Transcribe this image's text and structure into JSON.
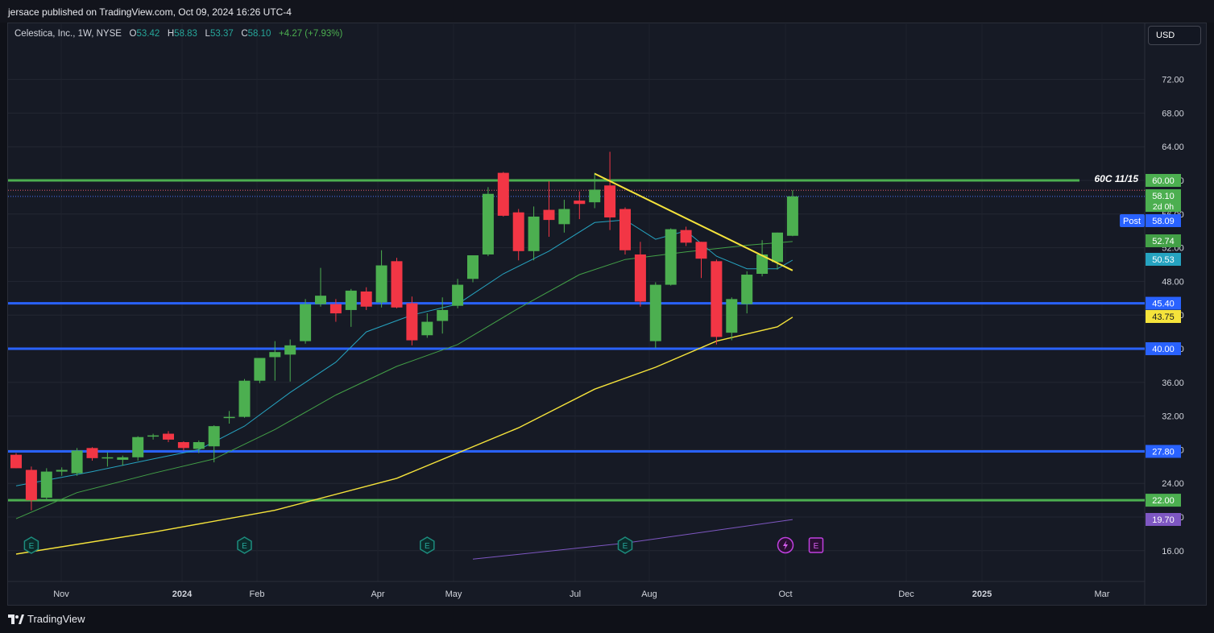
{
  "header": {
    "published": "jersace published on TradingView.com, Oct 09, 2024 16:26 UTC-4"
  },
  "legend": {
    "symbol": "Celestica, Inc., 1W, NYSE",
    "o_label": "O",
    "o_value": "53.42",
    "h_label": "H",
    "h_value": "58.83",
    "l_label": "L",
    "l_value": "53.37",
    "c_label": "C",
    "c_value": "58.10",
    "change": "+4.27 (+7.93%)"
  },
  "currency_button": "USD",
  "brand": "TradingView",
  "colors": {
    "up": "#4caf50",
    "down": "#f23645",
    "ema_fast": "#26a3c0",
    "ema_mid": "#43a047",
    "ema_slow": "#f5e33b",
    "long_ma": "#7e57c2",
    "support": "#2962ff",
    "level_green": "#4caf50",
    "trendline": "#f5e33b"
  },
  "chart_data": {
    "type": "candlestick",
    "title": "Celestica, Inc., 1W, NYSE",
    "timeframe": "1W",
    "ylim": [
      15,
      75
    ],
    "y_ticks": [
      "72.00",
      "68.00",
      "64.00",
      "60.00",
      "56.00",
      "52.00",
      "48.00",
      "44.00",
      "40.00",
      "36.00",
      "32.00",
      "28.00",
      "24.00",
      "20.00",
      "16.00"
    ],
    "x_ticks": [
      "Nov",
      "2024",
      "Feb",
      "Apr",
      "May",
      "Jul",
      "Aug",
      "Oct",
      "Dec",
      "2025",
      "Mar"
    ],
    "grid": true,
    "candles": [
      {
        "date": "2023-10-16",
        "o": 27.4,
        "h": 27.6,
        "l": 25.8,
        "c": 25.8
      },
      {
        "date": "2023-10-23",
        "o": 25.6,
        "h": 26.0,
        "l": 20.8,
        "c": 22.0
      },
      {
        "date": "2023-10-30",
        "o": 22.3,
        "h": 25.8,
        "l": 21.9,
        "c": 25.4
      },
      {
        "date": "2023-11-06",
        "o": 25.4,
        "h": 25.9,
        "l": 24.9,
        "c": 25.6
      },
      {
        "date": "2023-11-13",
        "o": 25.2,
        "h": 28.2,
        "l": 24.9,
        "c": 27.9
      },
      {
        "date": "2023-11-20",
        "o": 28.2,
        "h": 28.3,
        "l": 26.7,
        "c": 27.0
      },
      {
        "date": "2023-11-27",
        "o": 27.0,
        "h": 27.7,
        "l": 26.0,
        "c": 27.1
      },
      {
        "date": "2023-12-04",
        "o": 26.8,
        "h": 27.3,
        "l": 26.1,
        "c": 27.1
      },
      {
        "date": "2023-12-11",
        "o": 27.1,
        "h": 29.6,
        "l": 26.7,
        "c": 29.5
      },
      {
        "date": "2023-12-18",
        "o": 29.6,
        "h": 29.9,
        "l": 29.2,
        "c": 29.7
      },
      {
        "date": "2023-12-25",
        "o": 29.9,
        "h": 30.2,
        "l": 28.9,
        "c": 29.2
      },
      {
        "date": "2024-01-01",
        "o": 28.9,
        "h": 29.0,
        "l": 27.9,
        "c": 28.2
      },
      {
        "date": "2024-01-08",
        "o": 28.1,
        "h": 29.1,
        "l": 27.6,
        "c": 28.9
      },
      {
        "date": "2024-01-15",
        "o": 28.4,
        "h": 30.9,
        "l": 26.5,
        "c": 30.8
      },
      {
        "date": "2024-01-22",
        "o": 31.8,
        "h": 32.6,
        "l": 31.1,
        "c": 31.9
      },
      {
        "date": "2024-01-29",
        "o": 31.9,
        "h": 36.4,
        "l": 31.8,
        "c": 36.2
      },
      {
        "date": "2024-02-05",
        "o": 36.2,
        "h": 38.9,
        "l": 35.9,
        "c": 38.9
      },
      {
        "date": "2024-02-12",
        "o": 39.0,
        "h": 40.9,
        "l": 36.2,
        "c": 39.6
      },
      {
        "date": "2024-02-19",
        "o": 39.3,
        "h": 41.1,
        "l": 36.1,
        "c": 40.4
      },
      {
        "date": "2024-02-26",
        "o": 40.9,
        "h": 45.9,
        "l": 40.6,
        "c": 45.3
      },
      {
        "date": "2024-03-04",
        "o": 45.3,
        "h": 49.6,
        "l": 45.0,
        "c": 46.3
      },
      {
        "date": "2024-03-11",
        "o": 45.3,
        "h": 45.9,
        "l": 43.2,
        "c": 44.2
      },
      {
        "date": "2024-03-18",
        "o": 44.6,
        "h": 47.1,
        "l": 42.6,
        "c": 46.9
      },
      {
        "date": "2024-03-25",
        "o": 46.8,
        "h": 47.3,
        "l": 44.6,
        "c": 45.0
      },
      {
        "date": "2024-04-01",
        "o": 45.5,
        "h": 51.7,
        "l": 44.9,
        "c": 49.9
      },
      {
        "date": "2024-04-08",
        "o": 50.4,
        "h": 50.8,
        "l": 44.8,
        "c": 44.9
      },
      {
        "date": "2024-04-15",
        "o": 45.4,
        "h": 46.2,
        "l": 40.4,
        "c": 41.0
      },
      {
        "date": "2024-04-22",
        "o": 41.6,
        "h": 44.2,
        "l": 41.3,
        "c": 43.2
      },
      {
        "date": "2024-04-29",
        "o": 43.3,
        "h": 46.1,
        "l": 41.8,
        "c": 44.6
      },
      {
        "date": "2024-05-06",
        "o": 45.1,
        "h": 48.3,
        "l": 44.8,
        "c": 47.6
      },
      {
        "date": "2024-05-13",
        "o": 48.3,
        "h": 50.7,
        "l": 47.9,
        "c": 51.1
      },
      {
        "date": "2024-05-20",
        "o": 51.2,
        "h": 59.2,
        "l": 51.0,
        "c": 58.4
      },
      {
        "date": "2024-05-27",
        "o": 60.9,
        "h": 61.0,
        "l": 55.7,
        "c": 55.8
      },
      {
        "date": "2024-06-03",
        "o": 56.2,
        "h": 56.6,
        "l": 50.5,
        "c": 51.6
      },
      {
        "date": "2024-06-10",
        "o": 51.6,
        "h": 56.9,
        "l": 50.5,
        "c": 55.7
      },
      {
        "date": "2024-06-17",
        "o": 56.5,
        "h": 59.9,
        "l": 53.3,
        "c": 55.3
      },
      {
        "date": "2024-06-24",
        "o": 54.8,
        "h": 57.7,
        "l": 53.8,
        "c": 56.6
      },
      {
        "date": "2024-07-01",
        "o": 57.6,
        "h": 58.7,
        "l": 55.4,
        "c": 57.2
      },
      {
        "date": "2024-07-08",
        "o": 57.4,
        "h": 60.9,
        "l": 56.7,
        "c": 58.9
      },
      {
        "date": "2024-07-15",
        "o": 59.4,
        "h": 63.4,
        "l": 54.1,
        "c": 55.6
      },
      {
        "date": "2024-07-22",
        "o": 56.6,
        "h": 56.8,
        "l": 51.2,
        "c": 51.7
      },
      {
        "date": "2024-07-29",
        "o": 51.2,
        "h": 52.7,
        "l": 45.0,
        "c": 45.6
      },
      {
        "date": "2024-08-05",
        "o": 40.9,
        "h": 47.9,
        "l": 40.1,
        "c": 47.6
      },
      {
        "date": "2024-08-12",
        "o": 47.6,
        "h": 54.3,
        "l": 47.5,
        "c": 54.2
      },
      {
        "date": "2024-08-19",
        "o": 54.1,
        "h": 54.5,
        "l": 52.2,
        "c": 52.6
      },
      {
        "date": "2024-08-26",
        "o": 52.7,
        "h": 52.7,
        "l": 48.4,
        "c": 50.7
      },
      {
        "date": "2024-09-02",
        "o": 50.4,
        "h": 50.6,
        "l": 40.5,
        "c": 41.4
      },
      {
        "date": "2024-09-09",
        "o": 41.9,
        "h": 46.1,
        "l": 41.0,
        "c": 45.9
      },
      {
        "date": "2024-09-16",
        "o": 45.3,
        "h": 49.2,
        "l": 44.2,
        "c": 48.8
      },
      {
        "date": "2024-09-23",
        "o": 48.9,
        "h": 52.9,
        "l": 48.6,
        "c": 51.2
      },
      {
        "date": "2024-09-30",
        "o": 50.3,
        "h": 53.8,
        "l": 49.4,
        "c": 53.8
      },
      {
        "date": "2024-10-07",
        "o": 53.42,
        "h": 58.83,
        "l": 53.37,
        "c": 58.1
      }
    ],
    "ema_fast": [
      {
        "date": "2023-10-16",
        "v": 23.7
      },
      {
        "date": "2023-11-20",
        "v": 25.4
      },
      {
        "date": "2023-12-18",
        "v": 26.9
      },
      {
        "date": "2024-01-08",
        "v": 28.0
      },
      {
        "date": "2024-01-29",
        "v": 30.8
      },
      {
        "date": "2024-02-19",
        "v": 34.8
      },
      {
        "date": "2024-03-11",
        "v": 38.4
      },
      {
        "date": "2024-03-25",
        "v": 42.0
      },
      {
        "date": "2024-04-15",
        "v": 44.0
      },
      {
        "date": "2024-05-06",
        "v": 45.3
      },
      {
        "date": "2024-05-27",
        "v": 48.9
      },
      {
        "date": "2024-06-17",
        "v": 51.6
      },
      {
        "date": "2024-07-08",
        "v": 55.0
      },
      {
        "date": "2024-07-22",
        "v": 55.3
      },
      {
        "date": "2024-08-05",
        "v": 53.0
      },
      {
        "date": "2024-08-19",
        "v": 54.0
      },
      {
        "date": "2024-09-02",
        "v": 51.0
      },
      {
        "date": "2024-09-16",
        "v": 49.5
      },
      {
        "date": "2024-09-30",
        "v": 49.5
      },
      {
        "date": "2024-10-07",
        "v": 50.53
      }
    ],
    "ema_mid": [
      {
        "date": "2023-10-16",
        "v": 19.8
      },
      {
        "date": "2023-11-13",
        "v": 22.9
      },
      {
        "date": "2023-12-18",
        "v": 25.2
      },
      {
        "date": "2024-01-15",
        "v": 26.9
      },
      {
        "date": "2024-02-12",
        "v": 30.4
      },
      {
        "date": "2024-03-11",
        "v": 34.5
      },
      {
        "date": "2024-04-08",
        "v": 37.9
      },
      {
        "date": "2024-05-06",
        "v": 40.5
      },
      {
        "date": "2024-06-03",
        "v": 44.8
      },
      {
        "date": "2024-07-01",
        "v": 48.8
      },
      {
        "date": "2024-07-22",
        "v": 50.6
      },
      {
        "date": "2024-08-19",
        "v": 51.5
      },
      {
        "date": "2024-09-16",
        "v": 52.3
      },
      {
        "date": "2024-10-07",
        "v": 52.74
      }
    ],
    "ema_slow": [
      {
        "date": "2023-10-16",
        "v": 15.6
      },
      {
        "date": "2023-12-18",
        "v": 18.2
      },
      {
        "date": "2024-02-12",
        "v": 20.8
      },
      {
        "date": "2024-04-08",
        "v": 24.6
      },
      {
        "date": "2024-06-03",
        "v": 30.6
      },
      {
        "date": "2024-07-08",
        "v": 35.2
      },
      {
        "date": "2024-08-05",
        "v": 37.8
      },
      {
        "date": "2024-09-02",
        "v": 40.9
      },
      {
        "date": "2024-09-30",
        "v": 42.6
      },
      {
        "date": "2024-10-07",
        "v": 43.75
      }
    ],
    "long_ma": [
      {
        "date": "2024-05-13",
        "v": 15.0
      },
      {
        "date": "2024-07-22",
        "v": 16.9
      },
      {
        "date": "2024-10-07",
        "v": 19.7
      }
    ],
    "horizontal_levels": [
      {
        "price": 60.0,
        "label": "60.00",
        "kind": "resistance-green"
      },
      {
        "price": 45.4,
        "label": "45.40",
        "kind": "support-blue"
      },
      {
        "price": 40.0,
        "label": "40.00",
        "kind": "support-blue"
      },
      {
        "price": 27.8,
        "label": "27.80",
        "kind": "support-blue"
      },
      {
        "price": 22.0,
        "label": "22.00",
        "kind": "support-green"
      }
    ],
    "trendline": {
      "from": {
        "date": "2024-07-08",
        "v": 60.8
      },
      "to": {
        "date": "2024-10-07",
        "v": 49.3
      }
    },
    "annotation": "60C 11/15",
    "price_tags": [
      {
        "label": "58.10",
        "sub": "2d 0h",
        "price": 58.1,
        "bg": "#4caf50",
        "fg": "#ffffff"
      },
      {
        "label": "58.09",
        "prefix": "Post",
        "price": 58.09,
        "bg": "#2962ff",
        "fg": "#ffffff"
      },
      {
        "label": "52.74",
        "price": 52.74,
        "bg": "#43a047",
        "fg": "#ffffff"
      },
      {
        "label": "50.53",
        "price": 50.53,
        "bg": "#26a3c0",
        "fg": "#ffffff"
      },
      {
        "label": "43.75",
        "price": 43.75,
        "bg": "#f5e33b",
        "fg": "#131722"
      },
      {
        "label": "19.70",
        "price": 19.7,
        "bg": "#7e57c2",
        "fg": "#ffffff"
      }
    ],
    "events": [
      {
        "date": "2023-10-23",
        "type": "earnings",
        "label": "E"
      },
      {
        "date": "2024-01-29",
        "type": "earnings",
        "label": "E"
      },
      {
        "date": "2024-04-22",
        "type": "earnings",
        "label": "E"
      },
      {
        "date": "2024-07-22",
        "type": "earnings",
        "label": "E"
      },
      {
        "date": "2024-10-07",
        "type": "split-dividend",
        "label": "⚡"
      },
      {
        "date": "2024-10-14",
        "type": "earnings-upcoming",
        "label": "E"
      }
    ]
  }
}
